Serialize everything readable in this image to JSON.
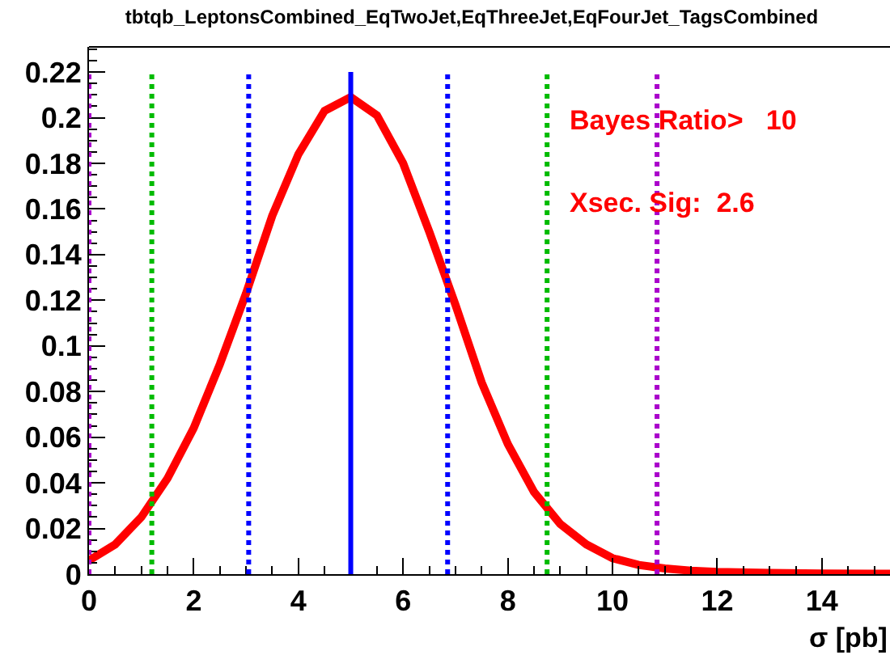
{
  "chart_data": {
    "type": "line",
    "title": "tbtqb_LeptonsCombined_EqTwoJet,EqThreeJet,EqFourJet_TagsCombined",
    "xlabel": "σ [pb]",
    "x": [
      0,
      0.5,
      1,
      1.5,
      2,
      2.5,
      3,
      3.5,
      4,
      4.5,
      5,
      5.5,
      6,
      6.5,
      7,
      7.5,
      8,
      8.5,
      9,
      9.5,
      10,
      10.5,
      11,
      11.5,
      12,
      13,
      14,
      15,
      15.3
    ],
    "series": [
      {
        "color": "#ff0000",
        "values": [
          0.006,
          0.013,
          0.025,
          0.042,
          0.064,
          0.092,
          0.123,
          0.157,
          0.184,
          0.203,
          0.209,
          0.201,
          0.18,
          0.15,
          0.118,
          0.084,
          0.057,
          0.036,
          0.022,
          0.013,
          0.007,
          0.004,
          0.0025,
          0.0015,
          0.001,
          0.0005,
          0.0003,
          0.0002,
          0.0002
        ]
      }
    ],
    "xlim": [
      0,
      15.3
    ],
    "ylim": [
      0,
      0.231
    ],
    "xticks": [
      0,
      2,
      4,
      6,
      8,
      10,
      12,
      14
    ],
    "yticks": [
      0,
      0.02,
      0.04,
      0.06,
      0.08,
      0.1,
      0.12,
      0.14,
      0.16,
      0.18,
      0.2,
      0.22
    ],
    "ref_lines": [
      {
        "axis": "x",
        "value": 0,
        "color": "#aa00cc",
        "line_style": "dotted"
      },
      {
        "axis": "x",
        "value": 1.2,
        "color": "#00bb00",
        "line_style": "dotted"
      },
      {
        "axis": "x",
        "value": 3.05,
        "color": "#0000ff",
        "line_style": "dotted"
      },
      {
        "axis": "x",
        "value": 5.0,
        "color": "#0000ff",
        "line_style": "solid"
      },
      {
        "axis": "x",
        "value": 6.85,
        "color": "#0000ff",
        "line_style": "dotted"
      },
      {
        "axis": "x",
        "value": 8.75,
        "color": "#00bb00",
        "line_style": "dotted"
      },
      {
        "axis": "x",
        "value": 10.85,
        "color": "#aa00cc",
        "line_style": "dotted"
      }
    ],
    "annotations": [
      "Bayes Ratio>   10",
      "Xsec. Sig:  2.6"
    ],
    "marker": "none",
    "line_style": "solid"
  }
}
